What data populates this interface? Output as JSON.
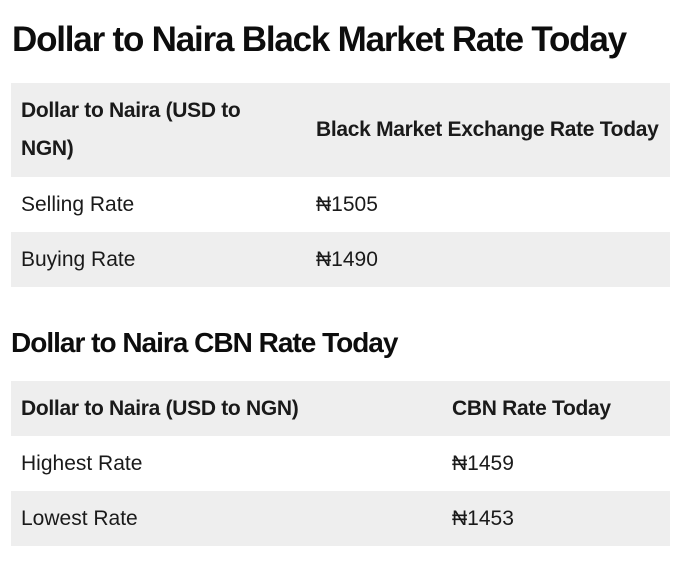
{
  "black_market": {
    "title": "Dollar to Naira Black Market Rate Today",
    "headers": [
      "Dollar to Naira (USD to NGN)",
      "Black Market Exchange Rate Today"
    ],
    "rows": [
      {
        "label": "Selling Rate",
        "value": "₦1505"
      },
      {
        "label": "Buying Rate",
        "value": "₦1490"
      }
    ]
  },
  "cbn": {
    "title": "Dollar to Naira CBN Rate Today",
    "headers": [
      "Dollar to Naira (USD to NGN)",
      "CBN Rate Today"
    ],
    "rows": [
      {
        "label": "Highest Rate",
        "value": "₦1459"
      },
      {
        "label": "Lowest Rate",
        "value": "₦1453"
      }
    ]
  },
  "colors": {
    "header_bg": "#eeeeee",
    "stripe_bg": "#eeeeee",
    "row_bg": "#ffffff",
    "text": "#111111"
  }
}
